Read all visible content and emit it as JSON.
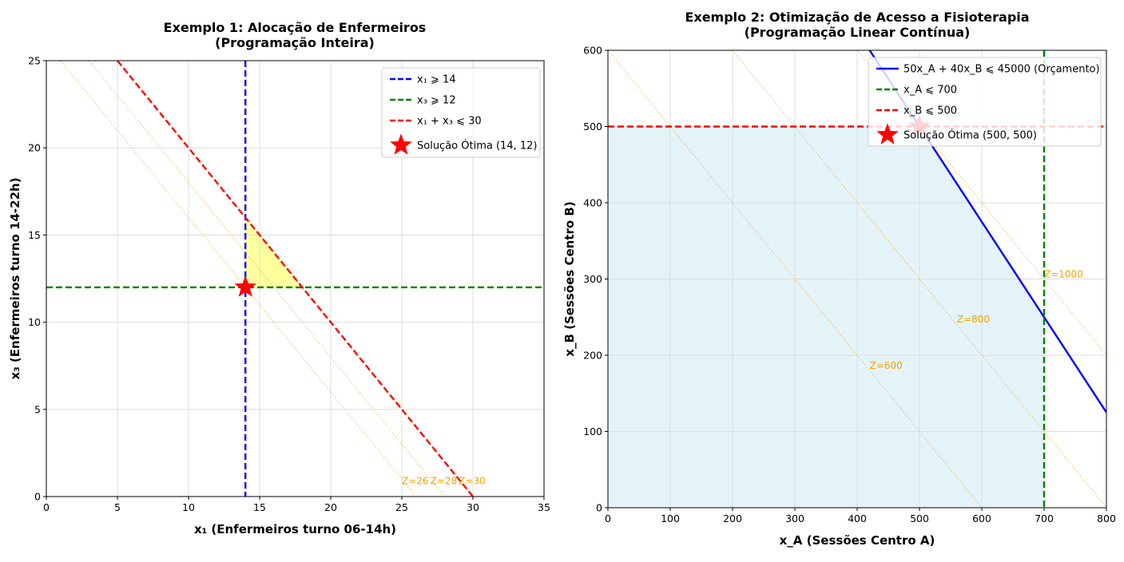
{
  "chart_data": [
    {
      "type": "line",
      "title_lines": [
        "Exemplo 1: Alocação de Enfermeiros",
        "(Programação Inteira)"
      ],
      "xlabel": "x₁ (Enfermeiros turno 06-14h)",
      "ylabel": "x₃ (Enfermeiros turno 14-22h)",
      "xlim": [
        0,
        35
      ],
      "ylim": [
        0,
        25
      ],
      "xticks": [
        0,
        5,
        10,
        15,
        20,
        25,
        30,
        35
      ],
      "yticks": [
        0,
        5,
        10,
        15,
        20,
        25
      ],
      "grid": true,
      "legend_position": "top-right",
      "feasible_region": {
        "points": [
          [
            14,
            12
          ],
          [
            14,
            16
          ],
          [
            18,
            12
          ]
        ],
        "color": "#ffff9e"
      },
      "constraints": [
        {
          "name": "x₁ ⩾ 14",
          "kind": "vertical",
          "x": 14,
          "color": "#0000ff",
          "dash": true
        },
        {
          "name": "x₃ ⩾ 12",
          "kind": "horizontal",
          "y": 12,
          "color": "#008000",
          "dash": true
        },
        {
          "name": "x₁ + x₃ ⩽ 30",
          "kind": "line",
          "points": [
            [
              5,
              25
            ],
            [
              30,
              0
            ]
          ],
          "color": "#ff0000",
          "dash": true
        }
      ],
      "iso_lines": [
        {
          "label": "Z=26",
          "points": [
            [
              1,
              25
            ],
            [
              26,
              0
            ]
          ],
          "label_at": [
            25,
            0.7
          ]
        },
        {
          "label": "Z=28",
          "points": [
            [
              3,
              25
            ],
            [
              28,
              0
            ]
          ],
          "label_at": [
            27,
            0.7
          ]
        },
        {
          "label": "Z=30",
          "points": [
            [
              5,
              25
            ],
            [
              30,
              0
            ]
          ],
          "label_at": [
            29,
            0.7
          ]
        }
      ],
      "optimal": {
        "name": "Solução Ótima (14, 12)",
        "x": 14,
        "y": 12,
        "color": "#ff0000"
      }
    },
    {
      "type": "line",
      "title_lines": [
        "Exemplo 2: Otimização de Acesso a Fisioterapia",
        "(Programação Linear Contínua)"
      ],
      "xlabel": "x_A (Sessões Centro A)",
      "ylabel": "x_B (Sessões Centro B)",
      "xlim": [
        0,
        800
      ],
      "ylim": [
        0,
        600
      ],
      "xticks": [
        0,
        100,
        200,
        300,
        400,
        500,
        600,
        700,
        800
      ],
      "yticks": [
        0,
        100,
        200,
        300,
        400,
        500,
        600
      ],
      "grid": true,
      "legend_position": "top-right",
      "feasible_region": {
        "points": [
          [
            0,
            0
          ],
          [
            0,
            500
          ],
          [
            500,
            500
          ],
          [
            700,
            250
          ],
          [
            700,
            0
          ]
        ],
        "color": "#e4f3f8"
      },
      "constraints": [
        {
          "name": "50x_A + 40x_B ⩽ 45000 (Orçamento)",
          "kind": "line",
          "points": [
            [
              420,
              600
            ],
            [
              800,
              125
            ]
          ],
          "color": "#0000ff",
          "dash": false
        },
        {
          "name": "x_A ⩽ 700",
          "kind": "vertical",
          "x": 700,
          "color": "#008000",
          "dash": true
        },
        {
          "name": "x_B ⩽ 500",
          "kind": "horizontal",
          "y": 500,
          "color": "#ff0000",
          "dash": true
        }
      ],
      "iso_lines": [
        {
          "label": "Z=600",
          "points": [
            [
              0,
              600
            ],
            [
              600,
              0
            ]
          ],
          "label_at": [
            420,
            182
          ]
        },
        {
          "label": "Z=800",
          "points": [
            [
              200,
              600
            ],
            [
              800,
              0
            ]
          ],
          "label_at": [
            560,
            243
          ]
        },
        {
          "label": "Z=1000",
          "points": [
            [
              400,
              600
            ],
            [
              800,
              200
            ]
          ],
          "label_at": [
            700,
            302
          ]
        }
      ],
      "optimal": {
        "name": "Solução Ótima (500, 500)",
        "x": 500,
        "y": 500,
        "color": "#ff0000"
      }
    }
  ]
}
